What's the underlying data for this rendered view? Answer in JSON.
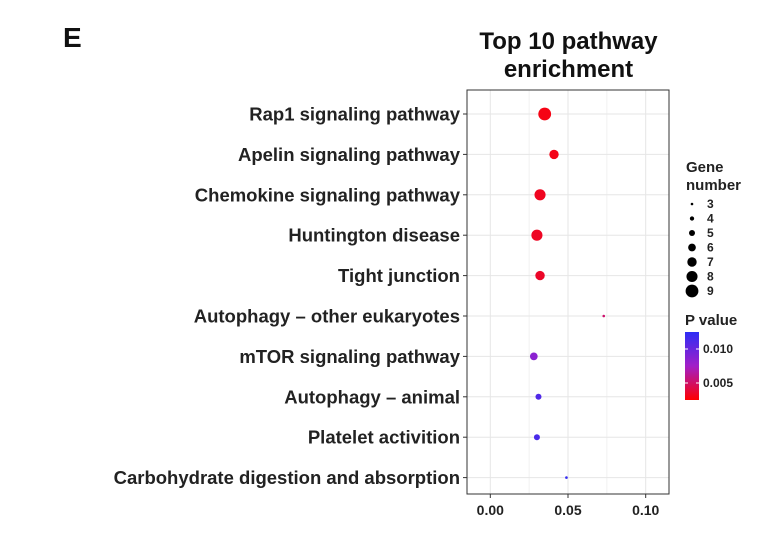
{
  "panel_label": "E",
  "chart_data": {
    "type": "scatter",
    "title": "Top 10 pathway enrichment",
    "xlabel": "",
    "ylabel": "",
    "xlim": [
      -0.015,
      0.115
    ],
    "xticks": [
      0.0,
      0.05,
      0.1
    ],
    "xtick_labels": [
      "0.00",
      "0.05",
      "0.10"
    ],
    "grid": true,
    "categories": [
      "Rap1 signaling pathway",
      "Apelin signaling pathway",
      "Chemokine signaling pathway",
      "Huntington  disease",
      "Tight junction",
      "Autophagy – other eukaryotes",
      "mTOR signaling pathway",
      "Autophagy – animal",
      "Platelet activition",
      "Carbohydrate digestion and absorption"
    ],
    "points": [
      {
        "category": "Rap1 signaling pathway",
        "x": 0.035,
        "gene_number": 9,
        "p_value": 0.003
      },
      {
        "category": "Apelin signaling pathway",
        "x": 0.041,
        "gene_number": 7,
        "p_value": 0.0031
      },
      {
        "category": "Chemokine signaling pathway",
        "x": 0.032,
        "gene_number": 8,
        "p_value": 0.0033
      },
      {
        "category": "Huntington  disease",
        "x": 0.03,
        "gene_number": 8,
        "p_value": 0.0034
      },
      {
        "category": "Tight junction",
        "x": 0.032,
        "gene_number": 7,
        "p_value": 0.0035
      },
      {
        "category": "Autophagy – other eukaryotes",
        "x": 0.073,
        "gene_number": 3,
        "p_value": 0.0052
      },
      {
        "category": "mTOR signaling pathway",
        "x": 0.028,
        "gene_number": 6,
        "p_value": 0.0085
      },
      {
        "category": "Autophagy – animal",
        "x": 0.031,
        "gene_number": 5,
        "p_value": 0.011
      },
      {
        "category": "Platelet activition",
        "x": 0.03,
        "gene_number": 5,
        "p_value": 0.0113
      },
      {
        "category": "Carbohydrate digestion and absorption",
        "x": 0.049,
        "gene_number": 3,
        "p_value": 0.0122
      }
    ],
    "legend": {
      "size": {
        "title_lines": [
          "Gene",
          "number"
        ],
        "values": [
          3,
          4,
          5,
          6,
          7,
          8,
          9
        ]
      },
      "color": {
        "title": "P value",
        "range": [
          0.0025,
          0.0125
        ],
        "ticks": [
          0.01,
          0.005
        ],
        "tick_labels": [
          "0.010",
          "0.005"
        ],
        "low_color": "#ff0000",
        "high_color": "#2d2df5"
      }
    }
  }
}
